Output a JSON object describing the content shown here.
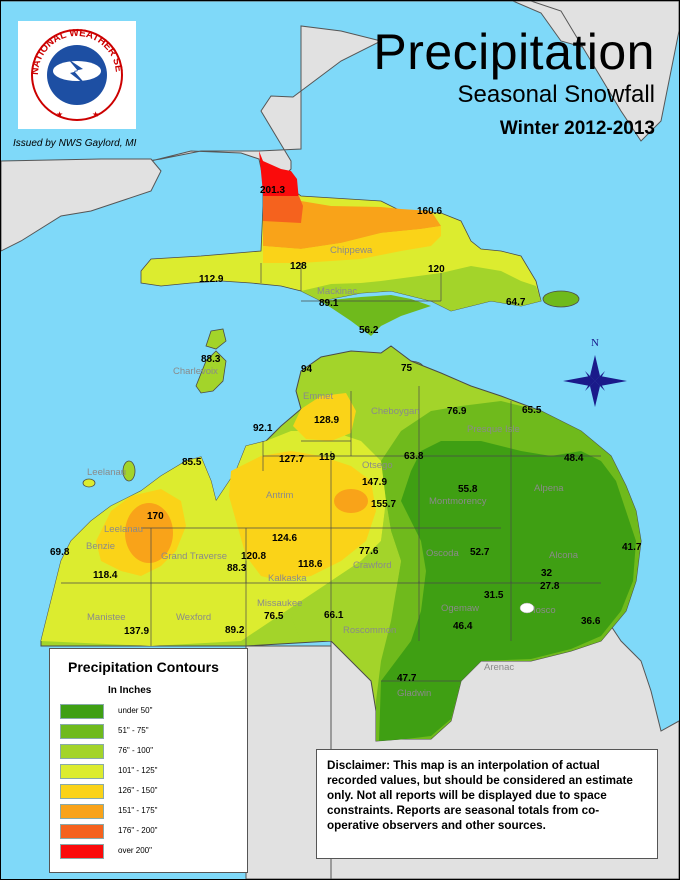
{
  "header": {
    "title": "Precipitation",
    "subtitle": "Seasonal Snowfall",
    "season": "Winter 2012-2013",
    "issued_by": "Issued by NWS Gaylord, MI",
    "logo_text": "NATIONAL WEATHER SERVICE"
  },
  "legend": {
    "title": "Precipitation Contours",
    "units": "In Inches",
    "items": [
      {
        "label": "under 50\"",
        "color": "#3f9f13"
      },
      {
        "label": "51\" - 75\"",
        "color": "#6fba1c"
      },
      {
        "label": "76\" - 100\"",
        "color": "#a3d42a"
      },
      {
        "label": "101\" - 125\"",
        "color": "#dcec2f"
      },
      {
        "label": "126\" - 150\"",
        "color": "#fad318"
      },
      {
        "label": "151\" - 175\"",
        "color": "#f9a319"
      },
      {
        "label": "176\" - 200\"",
        "color": "#f5621e"
      },
      {
        "label": "over 200\"",
        "color": "#fa0b0b"
      }
    ]
  },
  "compass": {
    "label": "N"
  },
  "disclaimer": "Disclaimer:  This map is an interpolation of actual recorded values, but should be considered an estimate only.  Not all reports will be displayed due to space constraints.  Reports are seasonal totals from co-operative observers and other sources.",
  "counties": [
    "Chippewa",
    "Mackinac",
    "Charlevoix",
    "Emmet",
    "Cheboygan",
    "Presque Isle",
    "Leelanau",
    "Antrim",
    "Otsego",
    "Montmorency",
    "Alpena",
    "Benzie",
    "Grand Traverse",
    "Kalkaska",
    "Crawford",
    "Oscoda",
    "Alcona",
    "Manistee",
    "Wexford",
    "Missaukee",
    "Roscommon",
    "Ogemaw",
    "Iosco",
    "Arenac",
    "Gladwin",
    "Leelanau"
  ],
  "reports": [
    "201.3",
    "160.6",
    "128",
    "120",
    "112.9",
    "89.1",
    "64.7",
    "56.2",
    "88.3",
    "94",
    "75",
    "128.9",
    "92.1",
    "76.9",
    "65.5",
    "127.7",
    "119",
    "147.9",
    "63.8",
    "48.4",
    "85.5",
    "155.7",
    "55.8",
    "170",
    "124.6",
    "69.8",
    "120.8",
    "77.6",
    "52.7",
    "41.7",
    "118.4",
    "88.3",
    "118.6",
    "32",
    "27.8",
    "31.5",
    "76.5",
    "66.1",
    "137.9",
    "89.2",
    "46.4",
    "36.6",
    "47.7"
  ],
  "colors": {
    "water": "#7fd9f9",
    "land": "#e1e1e1",
    "border": "#4a4a4a"
  }
}
